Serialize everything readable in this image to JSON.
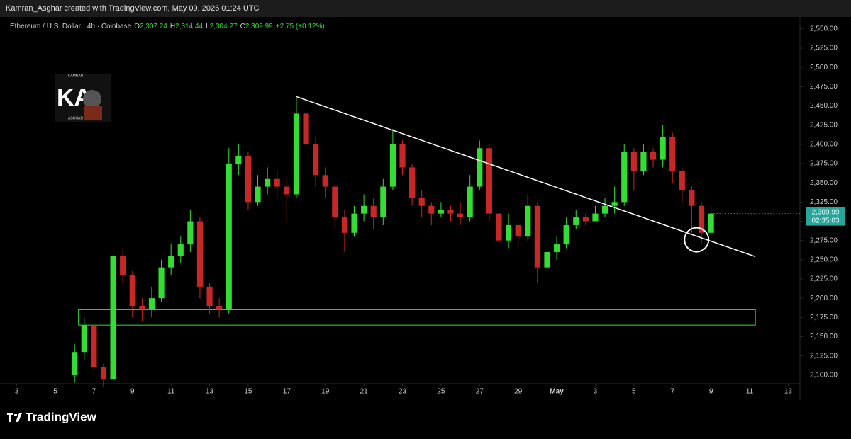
{
  "header": {
    "caption": "Kamran_Asghar created with TradingView.com, May 09, 2026 01:24 UTC"
  },
  "watermark": {
    "top": "KAMRAN",
    "monogram": "KA",
    "bottom": "ASGHAR"
  },
  "footer": {
    "brand": "TradingView"
  },
  "chart_data": {
    "type": "candlestick",
    "title": "Ethereum / U.S. Dollar · 4h · Coinbase",
    "ohlc": [
      {
        "key": "O",
        "value": "2,307.24"
      },
      {
        "key": "H",
        "value": "2,314.44"
      },
      {
        "key": "L",
        "value": "2,304.27"
      },
      {
        "key": "C",
        "value": "2,309.99"
      }
    ],
    "change": "+2.75 (+0.12%)",
    "up_color": "#33dd33",
    "down_color": "#c62828",
    "x": [
      6,
      6.5,
      7,
      7.5,
      8,
      8.5,
      9,
      9.5,
      10,
      10.5,
      11,
      11.5,
      12,
      12.5,
      13,
      13.5,
      14,
      14.5,
      15,
      15.5,
      16,
      16.5,
      17,
      17.5,
      18,
      18.5,
      19,
      19.5,
      20,
      20.5,
      21,
      21.5,
      22,
      22.5,
      23,
      23.5,
      24,
      24.5,
      25,
      25.5,
      26,
      26.5,
      27,
      27.5,
      28,
      28.5,
      29,
      29.5,
      30,
      30.5,
      31,
      31.5,
      32,
      32.5,
      33,
      33.5,
      34,
      34.5,
      35,
      35.5,
      36,
      36.5,
      37,
      37.5,
      38,
      38.5,
      39
    ],
    "open": [
      2100,
      2130,
      2165,
      2110,
      2095,
      2255,
      2230,
      2190,
      2185,
      2200,
      2240,
      2255,
      2270,
      2300,
      2215,
      2190,
      2185,
      2375,
      2385,
      2325,
      2345,
      2355,
      2345,
      2335,
      2440,
      2400,
      2360,
      2345,
      2305,
      2285,
      2310,
      2320,
      2305,
      2345,
      2400,
      2370,
      2330,
      2320,
      2310,
      2315,
      2310,
      2305,
      2345,
      2395,
      2310,
      2275,
      2295,
      2280,
      2320,
      2240,
      2260,
      2270,
      2295,
      2305,
      2300,
      2310,
      2320,
      2325,
      2390,
      2365,
      2390,
      2380,
      2410,
      2365,
      2340,
      2320,
      2285
    ],
    "high": [
      2140,
      2175,
      2170,
      2115,
      2265,
      2265,
      2235,
      2200,
      2215,
      2250,
      2270,
      2280,
      2315,
      2305,
      2220,
      2200,
      2395,
      2400,
      2390,
      2360,
      2370,
      2365,
      2360,
      2460,
      2445,
      2410,
      2370,
      2350,
      2315,
      2320,
      2335,
      2330,
      2355,
      2420,
      2405,
      2375,
      2340,
      2325,
      2325,
      2320,
      2325,
      2360,
      2405,
      2400,
      2315,
      2310,
      2300,
      2335,
      2325,
      2270,
      2280,
      2305,
      2315,
      2310,
      2320,
      2330,
      2345,
      2400,
      2395,
      2400,
      2395,
      2425,
      2415,
      2370,
      2345,
      2325,
      2320
    ],
    "low": [
      2090,
      2120,
      2100,
      2085,
      2090,
      2220,
      2175,
      2170,
      2175,
      2195,
      2230,
      2245,
      2260,
      2200,
      2180,
      2175,
      2180,
      2360,
      2315,
      2320,
      2335,
      2330,
      2300,
      2330,
      2385,
      2345,
      2330,
      2290,
      2260,
      2280,
      2300,
      2290,
      2295,
      2340,
      2360,
      2320,
      2305,
      2295,
      2305,
      2300,
      2295,
      2300,
      2340,
      2300,
      2265,
      2265,
      2265,
      2275,
      2220,
      2235,
      2250,
      2265,
      2290,
      2295,
      2300,
      2305,
      2310,
      2320,
      2340,
      2360,
      2370,
      2370,
      2350,
      2325,
      2285,
      2270,
      2280
    ],
    "close": [
      2130,
      2165,
      2110,
      2095,
      2255,
      2230,
      2190,
      2185,
      2200,
      2240,
      2255,
      2270,
      2300,
      2215,
      2190,
      2185,
      2375,
      2385,
      2325,
      2345,
      2355,
      2345,
      2335,
      2440,
      2400,
      2360,
      2345,
      2305,
      2285,
      2310,
      2320,
      2305,
      2345,
      2400,
      2370,
      2330,
      2320,
      2310,
      2315,
      2310,
      2305,
      2345,
      2395,
      2310,
      2275,
      2295,
      2280,
      2320,
      2240,
      2260,
      2270,
      2295,
      2305,
      2300,
      2310,
      2320,
      2325,
      2390,
      2365,
      2390,
      2380,
      2410,
      2365,
      2340,
      2320,
      2285,
      2310
    ],
    "xlim": [
      2.5,
      43.5
    ],
    "ylim": [
      2086,
      2560
    ],
    "xticks": [
      3,
      5,
      7,
      9,
      11,
      13,
      15,
      17,
      19,
      21,
      23,
      25,
      27,
      29,
      {
        "value": 31,
        "label": "May"
      },
      {
        "value": 33,
        "label": "3"
      },
      {
        "value": 35,
        "label": "5"
      },
      {
        "value": 37,
        "label": "7"
      },
      {
        "value": 39,
        "label": "9"
      },
      {
        "value": 41,
        "label": "11"
      },
      {
        "value": 43,
        "label": "13"
      }
    ],
    "yticks": [
      {
        "value": 2100,
        "label": "2,100.00"
      },
      {
        "value": 2125,
        "label": "2,125.00"
      },
      {
        "value": 2150,
        "label": "2,150.00"
      },
      {
        "value": 2175,
        "label": "2,175.00"
      },
      {
        "value": 2200,
        "label": "2,200.00"
      },
      {
        "value": 2225,
        "label": "2,225.00"
      },
      {
        "value": 2250,
        "label": "2,250.00"
      },
      {
        "value": 2275,
        "label": "2,275.00"
      },
      {
        "value": 2300,
        "label": "2,300.00"
      },
      {
        "value": 2325,
        "label": "2,325.00"
      },
      {
        "value": 2350,
        "label": "2,350.00"
      },
      {
        "value": 2375,
        "label": "2,375.00"
      },
      {
        "value": 2400,
        "label": "2,400.00"
      },
      {
        "value": 2425,
        "label": "2,425.00"
      },
      {
        "value": 2450,
        "label": "2,450.00"
      },
      {
        "value": 2475,
        "label": "2,475.00"
      },
      {
        "value": 2500,
        "label": "2,500.00"
      },
      {
        "value": 2525,
        "label": "2,525.00"
      },
      {
        "value": 2550,
        "label": "2,550.00"
      }
    ],
    "grid": false,
    "last_price": {
      "value": 2309.99,
      "label": "2,309.99"
    },
    "countdown": "02:35:03",
    "trendline": {
      "x": [
        17.5,
        41.3
      ],
      "y": [
        2462,
        2254
      ],
      "color": "#ffffff"
    },
    "zone": {
      "x": [
        6.2,
        41.3
      ],
      "y": [
        2165,
        2185
      ],
      "color": "#33dd33"
    },
    "circle": {
      "x": 38.25,
      "y": 2276,
      "color": "#ffffff"
    }
  }
}
